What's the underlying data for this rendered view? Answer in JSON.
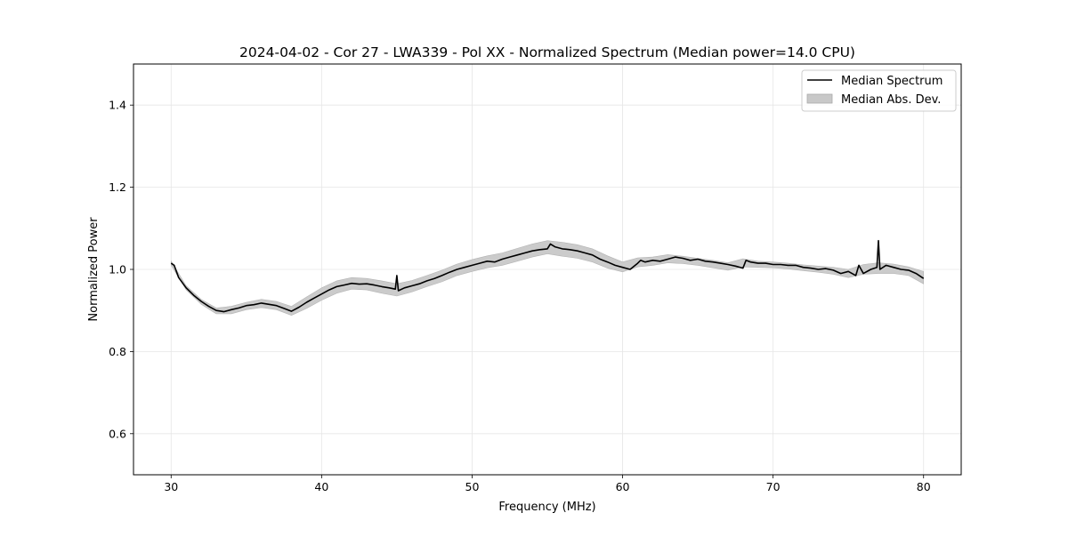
{
  "chart_data": {
    "type": "line",
    "title": "2024-04-02 - Cor 27 - LWA339 - Pol XX - Normalized Spectrum (Median power=14.0 CPU)",
    "xlabel": "Frequency (MHz)",
    "ylabel": "Normalized Power",
    "xlim": [
      27.5,
      82.5
    ],
    "ylim": [
      0.5,
      1.5
    ],
    "x_ticks": [
      30,
      40,
      50,
      60,
      70,
      80
    ],
    "y_ticks": [
      0.6,
      0.8,
      1.0,
      1.2,
      1.4
    ],
    "x_tick_labels": [
      "30",
      "40",
      "50",
      "60",
      "70",
      "80"
    ],
    "y_tick_labels": [
      "0.6",
      "0.8",
      "1.0",
      "1.2",
      "1.4"
    ],
    "grid": true,
    "legend": {
      "position": "top-right",
      "entries": [
        "Median Spectrum",
        "Median Abs. Dev."
      ]
    },
    "series": [
      {
        "name": "Median Spectrum",
        "color": "#000000",
        "x": [
          30.0,
          30.2,
          30.5,
          31.0,
          31.5,
          32.0,
          32.5,
          33.0,
          33.5,
          34.0,
          34.5,
          35.0,
          35.5,
          36.0,
          36.5,
          37.0,
          37.5,
          38.0,
          38.5,
          39.0,
          39.5,
          40.0,
          40.5,
          41.0,
          41.5,
          42.0,
          42.5,
          43.0,
          43.5,
          44.0,
          44.5,
          44.9,
          45.0,
          45.1,
          45.5,
          46.0,
          46.5,
          47.0,
          47.5,
          48.0,
          48.5,
          49.0,
          49.5,
          50.0,
          50.5,
          51.0,
          51.5,
          52.0,
          52.5,
          53.0,
          53.5,
          54.0,
          54.5,
          55.0,
          55.2,
          55.5,
          56.0,
          56.5,
          57.0,
          57.5,
          58.0,
          58.5,
          59.0,
          59.5,
          60.0,
          60.5,
          61.0,
          61.2,
          61.5,
          62.0,
          62.5,
          63.0,
          63.5,
          64.0,
          64.5,
          65.0,
          65.5,
          66.0,
          66.5,
          67.0,
          67.5,
          68.0,
          68.2,
          68.5,
          69.0,
          69.5,
          70.0,
          70.5,
          71.0,
          71.5,
          72.0,
          72.5,
          73.0,
          73.5,
          74.0,
          74.5,
          75.0,
          75.5,
          75.7,
          76.0,
          76.5,
          76.9,
          77.0,
          77.1,
          77.5,
          78.0,
          78.5,
          79.0,
          79.5,
          80.0
        ],
        "values": [
          1.015,
          1.01,
          0.98,
          0.955,
          0.937,
          0.922,
          0.91,
          0.9,
          0.897,
          0.902,
          0.906,
          0.912,
          0.914,
          0.918,
          0.915,
          0.912,
          0.905,
          0.898,
          0.908,
          0.92,
          0.93,
          0.94,
          0.95,
          0.958,
          0.962,
          0.966,
          0.964,
          0.965,
          0.962,
          0.958,
          0.955,
          0.952,
          0.985,
          0.948,
          0.955,
          0.96,
          0.965,
          0.972,
          0.978,
          0.985,
          0.993,
          1.0,
          1.005,
          1.01,
          1.015,
          1.02,
          1.018,
          1.025,
          1.03,
          1.035,
          1.04,
          1.045,
          1.048,
          1.05,
          1.062,
          1.055,
          1.05,
          1.048,
          1.045,
          1.04,
          1.035,
          1.025,
          1.018,
          1.01,
          1.005,
          1.0,
          1.015,
          1.022,
          1.018,
          1.022,
          1.02,
          1.025,
          1.03,
          1.027,
          1.022,
          1.025,
          1.02,
          1.018,
          1.015,
          1.012,
          1.008,
          1.003,
          1.022,
          1.018,
          1.015,
          1.015,
          1.012,
          1.012,
          1.01,
          1.01,
          1.005,
          1.003,
          1.0,
          1.002,
          0.998,
          0.99,
          0.995,
          0.985,
          1.01,
          0.99,
          1.0,
          1.005,
          1.07,
          1.0,
          1.01,
          1.005,
          1.0,
          0.998,
          0.99,
          0.978
        ]
      }
    ],
    "mad_band": {
      "name": "Median Abs. Dev.",
      "color": "#c8c8c8",
      "x": [
        30.0,
        31.0,
        32.0,
        33.0,
        34.0,
        35.0,
        36.0,
        37.0,
        38.0,
        39.0,
        40.0,
        41.0,
        42.0,
        43.0,
        44.0,
        45.0,
        46.0,
        47.0,
        48.0,
        49.0,
        50.0,
        51.0,
        52.0,
        53.0,
        54.0,
        55.0,
        56.0,
        57.0,
        58.0,
        59.0,
        60.0,
        61.0,
        62.0,
        63.0,
        64.0,
        65.0,
        66.0,
        67.0,
        68.0,
        69.0,
        70.0,
        71.0,
        72.0,
        73.0,
        74.0,
        75.0,
        76.0,
        77.0,
        78.0,
        79.0,
        80.0
      ],
      "upper": [
        1.02,
        0.96,
        0.927,
        0.906,
        0.91,
        0.92,
        0.927,
        0.922,
        0.91,
        0.933,
        0.955,
        0.972,
        0.98,
        0.978,
        0.972,
        0.965,
        0.973,
        0.985,
        0.998,
        1.013,
        1.024,
        1.033,
        1.04,
        1.051,
        1.062,
        1.07,
        1.066,
        1.06,
        1.05,
        1.033,
        1.018,
        1.028,
        1.03,
        1.036,
        1.032,
        1.027,
        1.022,
        1.016,
        1.026,
        1.02,
        1.018,
        1.015,
        1.011,
        1.008,
        1.005,
        1.0,
        1.012,
        1.016,
        1.013,
        1.006,
        0.995
      ],
      "lower": [
        1.01,
        0.95,
        0.915,
        0.892,
        0.892,
        0.902,
        0.907,
        0.902,
        0.888,
        0.905,
        0.925,
        0.942,
        0.952,
        0.95,
        0.942,
        0.935,
        0.945,
        0.958,
        0.97,
        0.985,
        0.995,
        1.004,
        1.01,
        1.02,
        1.03,
        1.038,
        1.032,
        1.027,
        1.018,
        1.003,
        0.994,
        1.006,
        1.01,
        1.016,
        1.014,
        1.01,
        1.004,
        0.998,
        1.006,
        1.005,
        1.004,
        1.001,
        0.997,
        0.993,
        0.988,
        0.98,
        0.988,
        0.99,
        0.99,
        0.985,
        0.965
      ]
    }
  }
}
